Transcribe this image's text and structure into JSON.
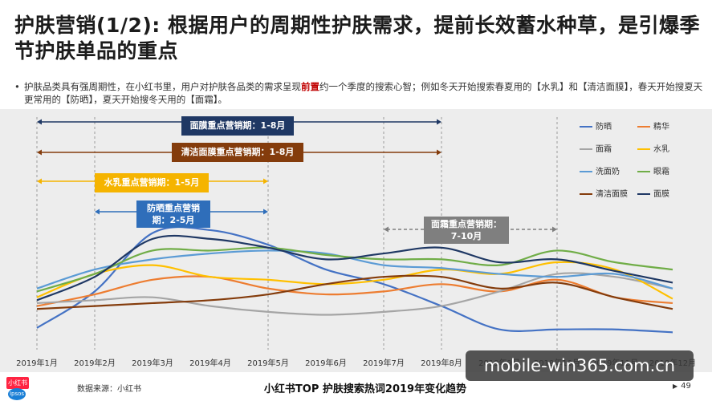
{
  "slide": {
    "title": "护肤营销(1/2): 根据用户的周期性护肤需求，提前长效蓄水种草，是引爆季节护肤单品的重点",
    "bullet_before": "护肤品类具有强周期性，在小红书里，用户对护肤各品类的需求呈现",
    "bullet_highlight": "前置",
    "bullet_after": "约一个季度的搜索心智；例如冬天开始搜索春夏用的【水乳】和【清洁面膜】，春天开始搜夏天更常用的【防晒】，夏天开始搜冬天用的【面霜】。",
    "source": "数据来源：小红书",
    "footer_title": "小红书TOP 护肤搜索热词2019年变化趋势",
    "page_number": "49",
    "logo_xhs": "小红书",
    "logo_ipsos": "Ipsos",
    "watermark": "mobile-win365.com.cn"
  },
  "chart_data": {
    "type": "line",
    "title": "",
    "xlabel": "",
    "ylabel": "",
    "grid": false,
    "legend_placement": "top-right",
    "categories": [
      "2019年1月",
      "2019年2月",
      "2019年3月",
      "2019年4月",
      "2019年5月",
      "2019年6月",
      "2019年7月",
      "2019年8月",
      "2019年9月",
      "2019年10月",
      "2019年11月",
      "2019年12月"
    ],
    "ylim": [
      0,
      100
    ],
    "series": [
      {
        "name": "防晒",
        "color": "#4472c4",
        "values": [
          5,
          30,
          70,
          72,
          62,
          45,
          35,
          20,
          4,
          4,
          4,
          2
        ]
      },
      {
        "name": "精华",
        "color": "#ed7d31",
        "values": [
          20,
          28,
          38,
          40,
          32,
          28,
          30,
          35,
          30,
          38,
          26,
          22
        ]
      },
      {
        "name": "面霜",
        "color": "#a5a5a5",
        "values": [
          22,
          24,
          26,
          20,
          16,
          14,
          16,
          20,
          30,
          42,
          40,
          32
        ]
      },
      {
        "name": "水乳",
        "color": "#ffc000",
        "values": [
          26,
          42,
          48,
          40,
          38,
          35,
          38,
          45,
          42,
          50,
          45,
          25
        ]
      },
      {
        "name": "洗面奶",
        "color": "#5b9bd5",
        "values": [
          32,
          45,
          52,
          56,
          58,
          56,
          48,
          46,
          42,
          40,
          42,
          32
        ]
      },
      {
        "name": "眼霜",
        "color": "#70ad47",
        "values": [
          30,
          42,
          58,
          58,
          60,
          55,
          52,
          52,
          48,
          58,
          50,
          45
        ]
      },
      {
        "name": "清洁面膜",
        "color": "#843c0c",
        "values": [
          18,
          20,
          22,
          24,
          28,
          35,
          40,
          40,
          32,
          36,
          26,
          18
        ]
      },
      {
        "name": "面膜",
        "color": "#1f3864",
        "values": [
          24,
          40,
          66,
          66,
          60,
          52,
          56,
          60,
          50,
          52,
          44,
          36
        ]
      }
    ],
    "annotations": [
      {
        "label": "面膜重点营销期：1-8月",
        "start": "2019年1月",
        "end": "2019年8月",
        "color": "#1f3864"
      },
      {
        "label": "清洁面膜重点营销期：1-8月",
        "start": "2019年1月",
        "end": "2019年8月",
        "color": "#843c0c"
      },
      {
        "label": "水乳重点营销期：1-5月",
        "start": "2019年1月",
        "end": "2019年5月",
        "color": "#f5b400"
      },
      {
        "label": "防晒重点营销期：2-5月",
        "start": "2019年2月",
        "end": "2019年5月",
        "color": "#2f6eba"
      },
      {
        "label": "面霜重点营销期：7-10月",
        "start": "2019年7月",
        "end": "2019年10月",
        "color": "#7f7f7f"
      }
    ]
  }
}
